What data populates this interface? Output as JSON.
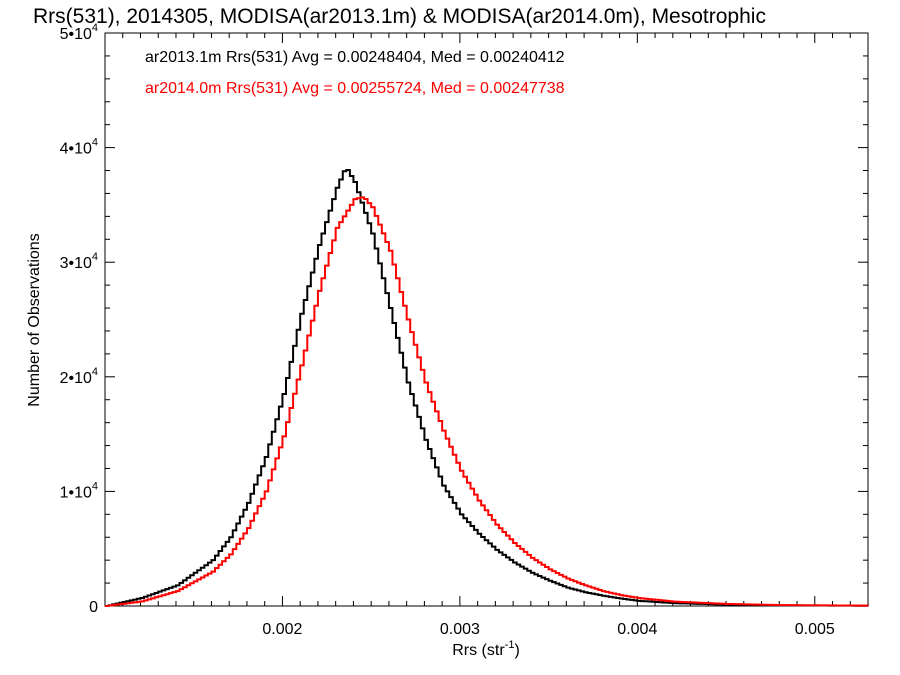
{
  "chart_data": {
    "type": "line",
    "title": "Rrs(531), 2014305, MODISA(ar2013.1m) & MODISA(ar2014.0m), Mesotrophic",
    "xlabel": {
      "base": "Rrs (str",
      "sup": "-1",
      "close": ")"
    },
    "ylabel": "Number of Observations",
    "xlim": [
      0.001,
      0.0053
    ],
    "ylim": [
      0,
      50000
    ],
    "x_ticks": [
      {
        "value": 0.002,
        "label": "0.002"
      },
      {
        "value": 0.003,
        "label": "0.003"
      },
      {
        "value": 0.004,
        "label": "0.004"
      },
      {
        "value": 0.005,
        "label": "0.005"
      }
    ],
    "y_ticks": [
      {
        "value": 0,
        "base": "0",
        "exp": ""
      },
      {
        "value": 10000,
        "base": "1•10",
        "exp": "4"
      },
      {
        "value": 20000,
        "base": "2•10",
        "exp": "4"
      },
      {
        "value": 30000,
        "base": "3•10",
        "exp": "4"
      },
      {
        "value": 40000,
        "base": "4•10",
        "exp": "4"
      },
      {
        "value": 50000,
        "base": "5•10",
        "exp": "4"
      }
    ],
    "legend_placement": "top-left",
    "series": [
      {
        "name": "ar2013.1m",
        "label": "ar2013.1m Rrs(531) Avg = 0.00248404, Med = 0.00240412",
        "color": "#000000",
        "x": [
          0.001,
          0.0012,
          0.0014,
          0.0016,
          0.0017,
          0.0018,
          0.0019,
          0.002,
          0.0021,
          0.0022,
          0.0023,
          0.00235,
          0.0024,
          0.0025,
          0.0026,
          0.0027,
          0.0028,
          0.0029,
          0.003,
          0.0031,
          0.0032,
          0.0033,
          0.0034,
          0.0035,
          0.0036,
          0.0037,
          0.0038,
          0.0039,
          0.004,
          0.0042,
          0.0045,
          0.0048,
          0.0053
        ],
        "y": [
          0,
          700,
          1800,
          4000,
          6000,
          9000,
          13000,
          18500,
          25500,
          31500,
          36500,
          38300,
          37000,
          32500,
          26000,
          19500,
          14500,
          10500,
          8000,
          6300,
          4900,
          3800,
          2900,
          2200,
          1600,
          1200,
          900,
          650,
          450,
          250,
          120,
          60,
          20
        ]
      },
      {
        "name": "ar2014.0m",
        "label": "ar2014.0m Rrs(531) Avg = 0.00255724, Med = 0.00247738",
        "color": "#ff0000",
        "x": [
          0.001,
          0.0012,
          0.0014,
          0.0016,
          0.0017,
          0.0018,
          0.0019,
          0.002,
          0.0021,
          0.0022,
          0.0023,
          0.0024,
          0.00245,
          0.0025,
          0.0026,
          0.0027,
          0.0028,
          0.0029,
          0.003,
          0.0031,
          0.0032,
          0.0033,
          0.0034,
          0.0035,
          0.0036,
          0.0037,
          0.0038,
          0.0039,
          0.004,
          0.0042,
          0.0045,
          0.0048,
          0.0053
        ],
        "y": [
          0,
          400,
          1300,
          3000,
          4500,
          6800,
          10000,
          14800,
          21000,
          27500,
          33000,
          35500,
          35700,
          34800,
          31000,
          25000,
          19500,
          15300,
          11800,
          9200,
          7100,
          5500,
          4200,
          3200,
          2400,
          1800,
          1300,
          950,
          700,
          380,
          180,
          80,
          30
        ]
      }
    ]
  }
}
